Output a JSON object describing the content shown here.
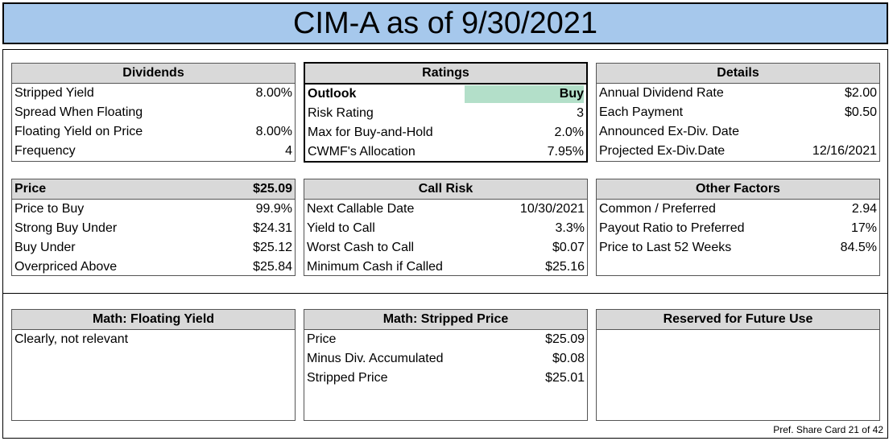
{
  "title": "CIM-A as of 9/30/2021",
  "dividends": {
    "header": "Dividends",
    "rows": [
      {
        "label": "Stripped Yield",
        "value": "8.00%"
      },
      {
        "label": "Spread When Floating",
        "value": ""
      },
      {
        "label": "Floating Yield on Price",
        "value": "8.00%"
      },
      {
        "label": "Frequency",
        "value": "4"
      }
    ]
  },
  "ratings": {
    "header": "Ratings",
    "rows": [
      {
        "label": "Outlook",
        "value": "Buy"
      },
      {
        "label": "Risk Rating",
        "value": "3"
      },
      {
        "label": "Max for Buy-and-Hold",
        "value": "2.0%"
      },
      {
        "label": "CWMF's Allocation",
        "value": "7.95%"
      }
    ],
    "highlight_color": "#b3dfc9"
  },
  "details": {
    "header": "Details",
    "rows": [
      {
        "label": "Annual Dividend Rate",
        "value": "$2.00"
      },
      {
        "label": "Each Payment",
        "value": "$0.50"
      },
      {
        "label": "Announced Ex-Div. Date",
        "value": ""
      },
      {
        "label": "Projected Ex-Div.Date",
        "value": "12/16/2021"
      }
    ]
  },
  "price": {
    "header_label": "Price",
    "header_value": "$25.09",
    "rows": [
      {
        "label": "Price to Buy",
        "value": "99.9%"
      },
      {
        "label": "Strong Buy Under",
        "value": "$24.31"
      },
      {
        "label": "Buy Under",
        "value": "$25.12"
      },
      {
        "label": "Overpriced Above",
        "value": "$25.84"
      }
    ]
  },
  "call_risk": {
    "header": "Call Risk",
    "rows": [
      {
        "label": "Next Callable Date",
        "value": "10/30/2021"
      },
      {
        "label": "Yield to Call",
        "value": "3.3%"
      },
      {
        "label": "Worst Cash to Call",
        "value": "$0.07"
      },
      {
        "label": "Minimum Cash if Called",
        "value": "$25.16"
      }
    ]
  },
  "other_factors": {
    "header": "Other Factors",
    "rows": [
      {
        "label": "Common / Preferred",
        "value": "2.94"
      },
      {
        "label": "Payout Ratio to Preferred",
        "value": "17%"
      },
      {
        "label": "Price to Last 52 Weeks",
        "value": "84.5%"
      }
    ]
  },
  "math_floating": {
    "header": "Math: Floating Yield",
    "text": "Clearly, not relevant"
  },
  "math_stripped": {
    "header": "Math: Stripped Price",
    "rows": [
      {
        "label": "Price",
        "value": "$25.09"
      },
      {
        "label": "Minus Div. Accumulated",
        "value": "$0.08"
      },
      {
        "label": "Stripped Price",
        "value": "$25.01"
      }
    ]
  },
  "reserved": {
    "header": "Reserved for Future Use"
  },
  "footer": "Pref. Share Card 21 of 42"
}
